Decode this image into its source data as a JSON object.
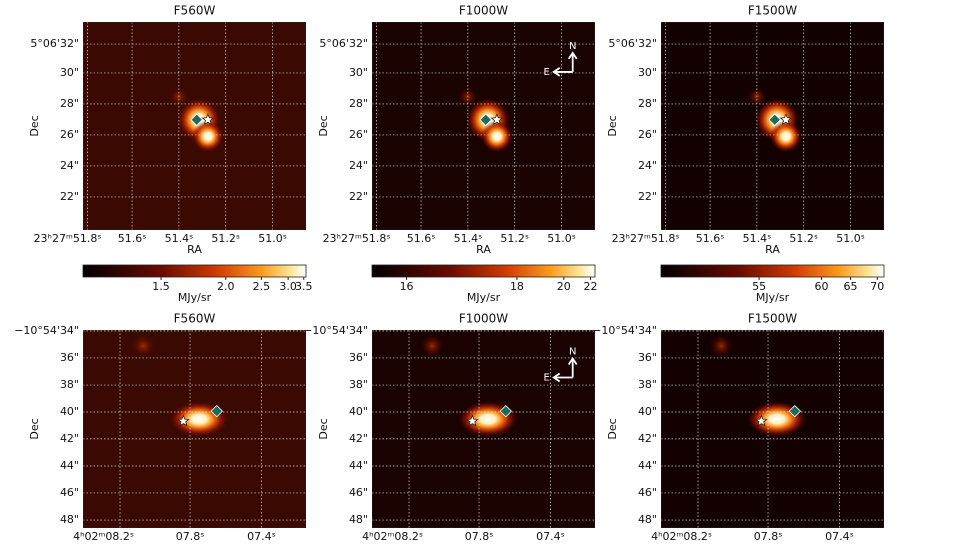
{
  "panels": [
    {
      "title": "F560W",
      "y_label": "Dec",
      "x_label": "RA",
      "yticks": [
        "5°06'32\"",
        "30\"",
        "28\"",
        "26\"",
        "24\"",
        "22\""
      ],
      "xticks": [
        "23ʰ27ᵐ51.8ˢ",
        "51.6ˢ",
        "51.4ˢ",
        "51.2ˢ",
        "51.0ˢ"
      ],
      "colorbar": {
        "label": "MJy/sr",
        "ticks": [
          "1.5",
          "2.0",
          "2.5",
          "3.0",
          "3.5"
        ]
      }
    },
    {
      "title": "F1000W",
      "y_label": "Dec",
      "x_label": "RA",
      "yticks": [
        "5°06'32\"",
        "30\"",
        "28\"",
        "26\"",
        "24\"",
        "22\""
      ],
      "xticks": [
        "23ʰ27ᵐ51.8ˢ",
        "51.6ˢ",
        "51.4ˢ",
        "51.2ˢ",
        "51.0ˢ"
      ],
      "compass": {
        "north": "N",
        "east": "E"
      },
      "colorbar": {
        "label": "MJy/sr",
        "ticks": [
          "16",
          "18",
          "20",
          "22"
        ]
      }
    },
    {
      "title": "F1500W",
      "y_label": "Dec",
      "x_label": "RA",
      "yticks": [
        "5°06'32\"",
        "30\"",
        "28\"",
        "26\"",
        "24\"",
        "22\""
      ],
      "xticks": [
        "23ʰ27ᵐ51.8ˢ",
        "51.6ˢ",
        "51.4ˢ",
        "51.2ˢ",
        "51.0ˢ"
      ],
      "colorbar": {
        "label": "MJy/sr",
        "ticks": [
          "55",
          "60",
          "65",
          "70"
        ]
      }
    },
    {
      "title": "F560W",
      "y_label": "Dec",
      "yticks": [
        "−10°54'34\"",
        "36\"",
        "38\"",
        "40\"",
        "42\"",
        "44\"",
        "46\"",
        "48\""
      ],
      "xticks": [
        "4ʰ02ᵐ08.2ˢ",
        "07.8ˢ",
        "07.4ˢ"
      ]
    },
    {
      "title": "F1000W",
      "y_label": "Dec",
      "yticks": [
        "−10°54'34\"",
        "36\"",
        "38\"",
        "40\"",
        "42\"",
        "44\"",
        "46\"",
        "48\""
      ],
      "xticks": [
        "4ʰ02ᵐ08.2ˢ",
        "07.8ˢ",
        "07.4ˢ"
      ],
      "compass": {
        "north": "N",
        "east": "E"
      }
    },
    {
      "title": "F1500W",
      "y_label": "Dec",
      "yticks": [
        "−10°54'34\"",
        "36\"",
        "38\"",
        "40\"",
        "42\"",
        "44\"",
        "46\"",
        "48\""
      ],
      "xticks": [
        "4ʰ02ᵐ08.2ˢ",
        "07.8ˢ",
        "07.4ˢ"
      ]
    }
  ]
}
